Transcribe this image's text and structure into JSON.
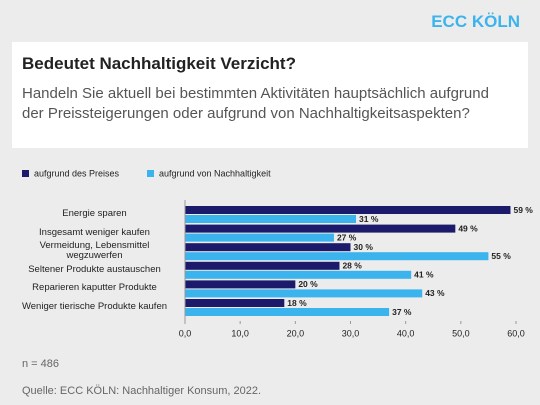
{
  "brand": "ECC KÖLN",
  "chart_data": {
    "type": "hbar",
    "title": "Bedeutet Nachhaltigkeit Verzicht?",
    "subtitle": "Handeln Sie aktuell bei bestimmten Aktivitäten hauptsächlich aufgrund der Preissteigerungen oder aufgrund von Nachhaltigkeitsaspekten?",
    "categories": [
      "Energie sparen",
      "Insgesamt weniger kaufen",
      "Vermeidung, Lebensmittel wegzuwerfen",
      "Seltener Produkte austauschen",
      "Reparieren kaputter Produkte",
      "Weniger tierische Produkte kaufen"
    ],
    "series": [
      {
        "name": "aufgrund des Preises",
        "color": "#1b1a6b",
        "values": [
          59,
          49,
          30,
          28,
          20,
          18
        ],
        "value_labels": [
          "59 %",
          "49 %",
          "30 %",
          "28 %",
          "20 %",
          "18 %"
        ]
      },
      {
        "name": "aufgrund von Nachhaltigkeit",
        "color": "#3bb4ee",
        "values": [
          31,
          27,
          55,
          41,
          43,
          37
        ],
        "value_labels": [
          "31 %",
          "27 %",
          "55 %",
          "41 %",
          "43 %",
          "37 %"
        ]
      }
    ],
    "xlim": [
      0,
      60
    ],
    "xticks": [
      {
        "value": 0,
        "label": "0,0"
      },
      {
        "value": 10,
        "label": "10,0"
      },
      {
        "value": 20,
        "label": "20,0"
      },
      {
        "value": 30,
        "label": "30,0"
      },
      {
        "value": 40,
        "label": "40,0"
      },
      {
        "value": 50,
        "label": "50,0"
      },
      {
        "value": 60,
        "label": "60,0"
      }
    ],
    "grid": false,
    "legend": "top-left",
    "note": "n = 486",
    "source": "Quelle: ECC KÖLN: Nachhaltiger Konsum, 2022."
  }
}
